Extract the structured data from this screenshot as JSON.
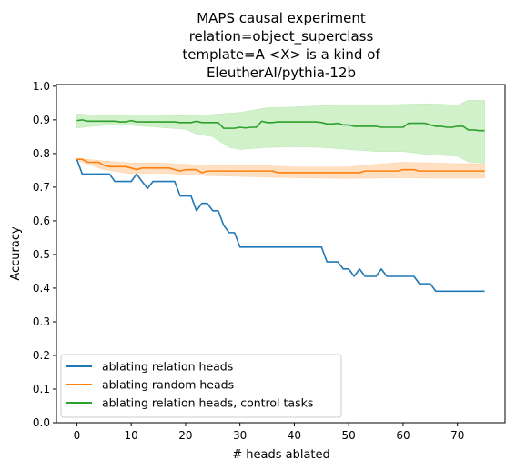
{
  "chart_data": {
    "type": "line",
    "title_lines": [
      "MAPS causal experiment",
      "relation=object_superclass",
      "template=A <X> is a kind of",
      "EleutherAI/pythia-12b"
    ],
    "xlabel": "# heads ablated",
    "ylabel": "Accuracy",
    "xlim": [
      -3.75,
      78.75
    ],
    "ylim": [
      0.0,
      1.005
    ],
    "xticks": [
      0,
      10,
      20,
      30,
      40,
      50,
      60,
      70
    ],
    "xtick_labels": [
      "0",
      "10",
      "20",
      "30",
      "40",
      "50",
      "60",
      "70"
    ],
    "yticks": [
      0.0,
      0.1,
      0.2,
      0.3,
      0.4,
      0.5,
      0.6,
      0.7,
      0.8,
      0.9,
      1.0
    ],
    "ytick_labels": [
      "0.0",
      "0.1",
      "0.2",
      "0.3",
      "0.4",
      "0.5",
      "0.6",
      "0.7",
      "0.8",
      "0.9",
      "1.0"
    ],
    "grid": false,
    "legend_position": "lower-left",
    "series": [
      {
        "name": "ablating relation heads",
        "color": "#1f77b4",
        "points": [
          [
            0,
            0.783
          ],
          [
            1,
            0.739
          ],
          [
            2,
            0.739
          ],
          [
            3,
            0.739
          ],
          [
            4,
            0.739
          ],
          [
            5,
            0.739
          ],
          [
            6,
            0.739
          ],
          [
            7,
            0.717
          ],
          [
            8,
            0.717
          ],
          [
            9,
            0.717
          ],
          [
            10,
            0.717
          ],
          [
            11,
            0.739
          ],
          [
            12,
            0.717
          ],
          [
            13,
            0.696
          ],
          [
            14,
            0.717
          ],
          [
            15,
            0.717
          ],
          [
            16,
            0.717
          ],
          [
            17,
            0.717
          ],
          [
            18,
            0.717
          ],
          [
            19,
            0.674
          ],
          [
            20,
            0.674
          ],
          [
            21,
            0.674
          ],
          [
            22,
            0.63
          ],
          [
            23,
            0.652
          ],
          [
            24,
            0.652
          ],
          [
            25,
            0.63
          ],
          [
            26,
            0.63
          ],
          [
            27,
            0.587
          ],
          [
            28,
            0.565
          ],
          [
            29,
            0.565
          ],
          [
            30,
            0.522
          ],
          [
            31,
            0.522
          ],
          [
            32,
            0.522
          ],
          [
            33,
            0.522
          ],
          [
            34,
            0.522
          ],
          [
            35,
            0.522
          ],
          [
            36,
            0.522
          ],
          [
            37,
            0.522
          ],
          [
            38,
            0.522
          ],
          [
            39,
            0.522
          ],
          [
            40,
            0.522
          ],
          [
            41,
            0.522
          ],
          [
            42,
            0.522
          ],
          [
            43,
            0.522
          ],
          [
            44,
            0.522
          ],
          [
            45,
            0.522
          ],
          [
            46,
            0.478
          ],
          [
            47,
            0.478
          ],
          [
            48,
            0.478
          ],
          [
            49,
            0.457
          ],
          [
            50,
            0.457
          ],
          [
            51,
            0.435
          ],
          [
            52,
            0.457
          ],
          [
            53,
            0.435
          ],
          [
            54,
            0.435
          ],
          [
            55,
            0.435
          ],
          [
            56,
            0.457
          ],
          [
            57,
            0.435
          ],
          [
            58,
            0.435
          ],
          [
            59,
            0.435
          ],
          [
            60,
            0.435
          ],
          [
            61,
            0.435
          ],
          [
            62,
            0.435
          ],
          [
            63,
            0.413
          ],
          [
            64,
            0.413
          ],
          [
            65,
            0.413
          ],
          [
            66,
            0.391
          ],
          [
            67,
            0.391
          ],
          [
            68,
            0.391
          ],
          [
            69,
            0.391
          ],
          [
            70,
            0.391
          ],
          [
            71,
            0.391
          ],
          [
            72,
            0.391
          ],
          [
            73,
            0.391
          ],
          [
            74,
            0.391
          ],
          [
            75,
            0.391
          ]
        ]
      },
      {
        "name": "ablating random heads",
        "color": "#ff7f0e",
        "band_color": "#ffbb78",
        "points": [
          [
            0,
            0.783
          ],
          [
            1,
            0.783
          ],
          [
            2,
            0.774
          ],
          [
            3,
            0.774
          ],
          [
            4,
            0.774
          ],
          [
            5,
            0.765
          ],
          [
            6,
            0.761
          ],
          [
            7,
            0.761
          ],
          [
            8,
            0.761
          ],
          [
            9,
            0.761
          ],
          [
            10,
            0.757
          ],
          [
            11,
            0.752
          ],
          [
            12,
            0.757
          ],
          [
            13,
            0.757
          ],
          [
            14,
            0.757
          ],
          [
            15,
            0.757
          ],
          [
            16,
            0.757
          ],
          [
            17,
            0.757
          ],
          [
            18,
            0.752
          ],
          [
            19,
            0.748
          ],
          [
            20,
            0.752
          ],
          [
            21,
            0.752
          ],
          [
            22,
            0.752
          ],
          [
            23,
            0.743
          ],
          [
            24,
            0.748
          ],
          [
            25,
            0.748
          ],
          [
            26,
            0.748
          ],
          [
            27,
            0.748
          ],
          [
            28,
            0.748
          ],
          [
            29,
            0.748
          ],
          [
            30,
            0.748
          ],
          [
            31,
            0.748
          ],
          [
            32,
            0.748
          ],
          [
            33,
            0.748
          ],
          [
            34,
            0.748
          ],
          [
            35,
            0.748
          ],
          [
            36,
            0.748
          ],
          [
            37,
            0.743
          ],
          [
            38,
            0.743
          ],
          [
            39,
            0.743
          ],
          [
            40,
            0.743
          ],
          [
            41,
            0.743
          ],
          [
            42,
            0.743
          ],
          [
            43,
            0.743
          ],
          [
            44,
            0.743
          ],
          [
            45,
            0.743
          ],
          [
            46,
            0.743
          ],
          [
            47,
            0.743
          ],
          [
            48,
            0.743
          ],
          [
            49,
            0.743
          ],
          [
            50,
            0.743
          ],
          [
            51,
            0.743
          ],
          [
            52,
            0.743
          ],
          [
            53,
            0.748
          ],
          [
            54,
            0.748
          ],
          [
            55,
            0.748
          ],
          [
            56,
            0.748
          ],
          [
            57,
            0.748
          ],
          [
            58,
            0.748
          ],
          [
            59,
            0.748
          ],
          [
            60,
            0.752
          ],
          [
            61,
            0.752
          ],
          [
            62,
            0.752
          ],
          [
            63,
            0.748
          ],
          [
            64,
            0.748
          ],
          [
            65,
            0.748
          ],
          [
            66,
            0.748
          ],
          [
            67,
            0.748
          ],
          [
            68,
            0.748
          ],
          [
            69,
            0.748
          ],
          [
            70,
            0.748
          ],
          [
            71,
            0.748
          ],
          [
            72,
            0.748
          ],
          [
            73,
            0.748
          ],
          [
            74,
            0.748
          ],
          [
            75,
            0.748
          ]
        ],
        "band_lower": [
          [
            0,
            0.78
          ],
          [
            5,
            0.752
          ],
          [
            10,
            0.74
          ],
          [
            15,
            0.742
          ],
          [
            20,
            0.738
          ],
          [
            25,
            0.734
          ],
          [
            30,
            0.732
          ],
          [
            35,
            0.73
          ],
          [
            40,
            0.728
          ],
          [
            45,
            0.727
          ],
          [
            50,
            0.726
          ],
          [
            55,
            0.727
          ],
          [
            60,
            0.728
          ],
          [
            65,
            0.727
          ],
          [
            70,
            0.727
          ],
          [
            75,
            0.727
          ]
        ],
        "band_upper": [
          [
            0,
            0.786
          ],
          [
            5,
            0.778
          ],
          [
            10,
            0.772
          ],
          [
            15,
            0.772
          ],
          [
            20,
            0.768
          ],
          [
            25,
            0.764
          ],
          [
            30,
            0.764
          ],
          [
            35,
            0.764
          ],
          [
            40,
            0.76
          ],
          [
            45,
            0.76
          ],
          [
            50,
            0.76
          ],
          [
            55,
            0.768
          ],
          [
            60,
            0.774
          ],
          [
            65,
            0.772
          ],
          [
            70,
            0.77
          ],
          [
            75,
            0.77
          ]
        ]
      },
      {
        "name": "ablating relation heads, control tasks",
        "color": "#2ca02c",
        "band_color": "#98df8a",
        "points": [
          [
            0,
            0.898
          ],
          [
            1,
            0.9
          ],
          [
            2,
            0.896
          ],
          [
            3,
            0.896
          ],
          [
            4,
            0.896
          ],
          [
            5,
            0.896
          ],
          [
            6,
            0.896
          ],
          [
            7,
            0.896
          ],
          [
            8,
            0.894
          ],
          [
            9,
            0.894
          ],
          [
            10,
            0.898
          ],
          [
            11,
            0.894
          ],
          [
            12,
            0.894
          ],
          [
            13,
            0.894
          ],
          [
            14,
            0.894
          ],
          [
            15,
            0.894
          ],
          [
            16,
            0.894
          ],
          [
            17,
            0.894
          ],
          [
            18,
            0.894
          ],
          [
            19,
            0.892
          ],
          [
            20,
            0.892
          ],
          [
            21,
            0.892
          ],
          [
            22,
            0.896
          ],
          [
            23,
            0.892
          ],
          [
            24,
            0.892
          ],
          [
            25,
            0.892
          ],
          [
            26,
            0.892
          ],
          [
            27,
            0.875
          ],
          [
            28,
            0.875
          ],
          [
            29,
            0.875
          ],
          [
            30,
            0.878
          ],
          [
            31,
            0.876
          ],
          [
            32,
            0.878
          ],
          [
            33,
            0.878
          ],
          [
            34,
            0.896
          ],
          [
            35,
            0.892
          ],
          [
            36,
            0.892
          ],
          [
            37,
            0.894
          ],
          [
            38,
            0.894
          ],
          [
            39,
            0.894
          ],
          [
            40,
            0.894
          ],
          [
            41,
            0.894
          ],
          [
            42,
            0.894
          ],
          [
            43,
            0.894
          ],
          [
            44,
            0.894
          ],
          [
            45,
            0.892
          ],
          [
            46,
            0.888
          ],
          [
            47,
            0.888
          ],
          [
            48,
            0.89
          ],
          [
            49,
            0.885
          ],
          [
            50,
            0.885
          ],
          [
            51,
            0.881
          ],
          [
            52,
            0.881
          ],
          [
            53,
            0.881
          ],
          [
            54,
            0.881
          ],
          [
            55,
            0.881
          ],
          [
            56,
            0.878
          ],
          [
            57,
            0.878
          ],
          [
            58,
            0.878
          ],
          [
            59,
            0.878
          ],
          [
            60,
            0.878
          ],
          [
            61,
            0.89
          ],
          [
            62,
            0.89
          ],
          [
            63,
            0.89
          ],
          [
            64,
            0.89
          ],
          [
            65,
            0.885
          ],
          [
            66,
            0.881
          ],
          [
            67,
            0.881
          ],
          [
            68,
            0.878
          ],
          [
            69,
            0.878
          ],
          [
            70,
            0.881
          ],
          [
            71,
            0.881
          ],
          [
            72,
            0.87
          ],
          [
            73,
            0.87
          ],
          [
            74,
            0.868
          ],
          [
            75,
            0.868
          ]
        ],
        "band_lower": [
          [
            0,
            0.876
          ],
          [
            5,
            0.884
          ],
          [
            10,
            0.884
          ],
          [
            15,
            0.878
          ],
          [
            20,
            0.872
          ],
          [
            22,
            0.858
          ],
          [
            25,
            0.85
          ],
          [
            28,
            0.818
          ],
          [
            30,
            0.812
          ],
          [
            35,
            0.818
          ],
          [
            40,
            0.82
          ],
          [
            45,
            0.818
          ],
          [
            50,
            0.812
          ],
          [
            55,
            0.806
          ],
          [
            60,
            0.806
          ],
          [
            65,
            0.796
          ],
          [
            70,
            0.792
          ],
          [
            72,
            0.775
          ],
          [
            75,
            0.772
          ]
        ],
        "band_upper": [
          [
            0,
            0.918
          ],
          [
            5,
            0.912
          ],
          [
            10,
            0.914
          ],
          [
            15,
            0.914
          ],
          [
            20,
            0.912
          ],
          [
            25,
            0.916
          ],
          [
            28,
            0.92
          ],
          [
            30,
            0.922
          ],
          [
            35,
            0.936
          ],
          [
            40,
            0.938
          ],
          [
            45,
            0.942
          ],
          [
            50,
            0.944
          ],
          [
            55,
            0.944
          ],
          [
            60,
            0.946
          ],
          [
            65,
            0.948
          ],
          [
            70,
            0.944
          ],
          [
            72,
            0.958
          ],
          [
            75,
            0.958
          ]
        ]
      }
    ]
  }
}
